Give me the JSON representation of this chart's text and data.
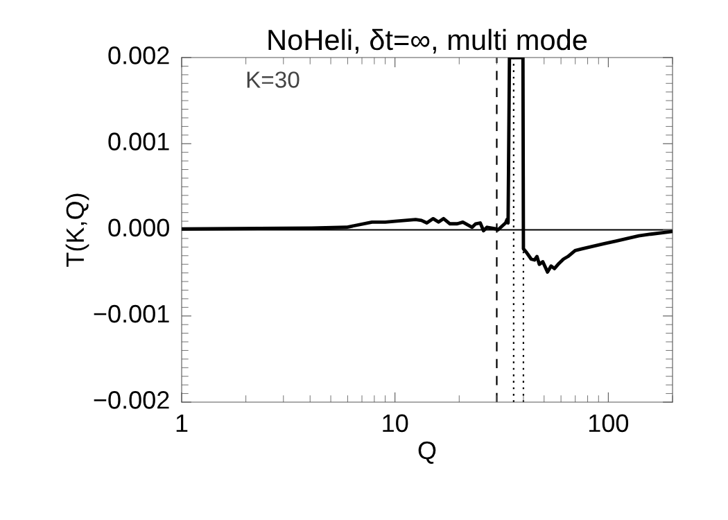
{
  "chart_data": {
    "type": "line",
    "title": "NoHeli, δt=∞, multi mode",
    "xlabel": "Q",
    "ylabel": "T(K,Q)",
    "annotations": [
      "K=30"
    ],
    "log": "x",
    "grid": false,
    "legend": false,
    "marker": "none",
    "line_style": "solid",
    "xlim": [
      1,
      200
    ],
    "xticks": [
      1,
      10,
      100
    ],
    "ylim": [
      -0.002,
      0.002
    ],
    "yticks": [
      {
        "value": -0.002,
        "label": "−0.002"
      },
      {
        "value": -0.001,
        "label": "−0.001"
      },
      {
        "value": 0,
        "label": "0.000"
      },
      {
        "value": 0.001,
        "label": "0.001"
      },
      {
        "value": 0.002,
        "label": "0.002"
      }
    ],
    "ref_lines": [
      {
        "axis": "y",
        "value": 0,
        "color": "#000000",
        "line_style": "solid"
      },
      {
        "axis": "x",
        "value": 30,
        "color": "#000000",
        "line_style": "dashed"
      },
      {
        "axis": "x",
        "value": 36,
        "color": "#000000",
        "line_style": "dotted"
      },
      {
        "axis": "x",
        "value": 40,
        "color": "#000000",
        "line_style": "dotted"
      }
    ],
    "series": [
      {
        "color": "#000000",
        "x": [
          1,
          4.07,
          5.93,
          7.8,
          9.0,
          10,
          12.5,
          13.3,
          14.1,
          15.1,
          16.0,
          16.9,
          18.1,
          19.6,
          20.8,
          23.0,
          23.9,
          25.1,
          26.0,
          27.0,
          29.9,
          30.4,
          33.0,
          33.5,
          33.9,
          34.4,
          39.8,
          40.0,
          41.3,
          43.5,
          45.1,
          46.3,
          47.5,
          49.3,
          51.9,
          53.9,
          55.9,
          58.7,
          61.6,
          64.6,
          69.9,
          75.3,
          84.9,
          95.8,
          109,
          123,
          139,
          158,
          199
        ],
        "values": [
          1e-05,
          2e-05,
          3e-05,
          9e-05,
          9e-05,
          0.0001,
          0.00012,
          0.00011,
          8e-05,
          0.00013,
          9e-05,
          0.00013,
          7e-05,
          7e-05,
          9e-05,
          3e-05,
          7e-05,
          8e-05,
          -1e-05,
          3e-05,
          1e-05,
          0.0,
          8e-05,
          0.00012,
          8e-05,
          0.002,
          0.002,
          -0.00022,
          -0.00026,
          -0.00034,
          -0.00035,
          -0.00031,
          -0.0004,
          -0.00037,
          -0.00049,
          -0.00042,
          -0.00045,
          -0.00039,
          -0.00034,
          -0.00031,
          -0.00024,
          -0.00022,
          -0.00019,
          -0.00016,
          -0.00013,
          -0.0001,
          -7e-05,
          -5e-05,
          -2e-05
        ]
      }
    ]
  }
}
